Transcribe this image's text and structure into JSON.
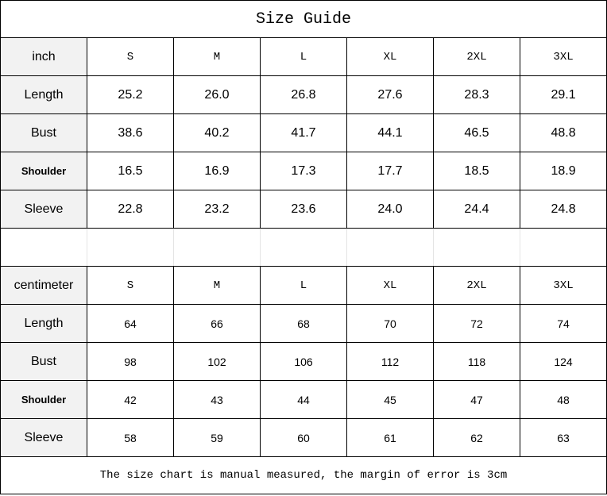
{
  "title": "Size Guide",
  "sizes": [
    "S",
    "M",
    "L",
    "XL",
    "2XL",
    "3XL"
  ],
  "inch": {
    "unit_label": "inch",
    "rows": [
      {
        "label": "Length",
        "values": [
          "25.2",
          "26.0",
          "26.8",
          "27.6",
          "28.3",
          "29.1"
        ]
      },
      {
        "label": "Bust",
        "values": [
          "38.6",
          "40.2",
          "41.7",
          "44.1",
          "46.5",
          "48.8"
        ]
      },
      {
        "label": "Shoulder",
        "values": [
          "16.5",
          "16.9",
          "17.3",
          "17.7",
          "18.5",
          "18.9"
        ]
      },
      {
        "label": "Sleeve",
        "values": [
          "22.8",
          "23.2",
          "23.6",
          "24.0",
          "24.4",
          "24.8"
        ]
      }
    ]
  },
  "centimeter": {
    "unit_label": "centimeter",
    "rows": [
      {
        "label": "Length",
        "values": [
          "64",
          "66",
          "68",
          "70",
          "72",
          "74"
        ]
      },
      {
        "label": "Bust",
        "values": [
          "98",
          "102",
          "106",
          "112",
          "118",
          "124"
        ]
      },
      {
        "label": "Shoulder",
        "values": [
          "42",
          "43",
          "44",
          "45",
          "47",
          "48"
        ]
      },
      {
        "label": "Sleeve",
        "values": [
          "58",
          "59",
          "60",
          "61",
          "62",
          "63"
        ]
      }
    ]
  },
  "footnote": "The size chart is manual measured, the margin of error is 3cm"
}
